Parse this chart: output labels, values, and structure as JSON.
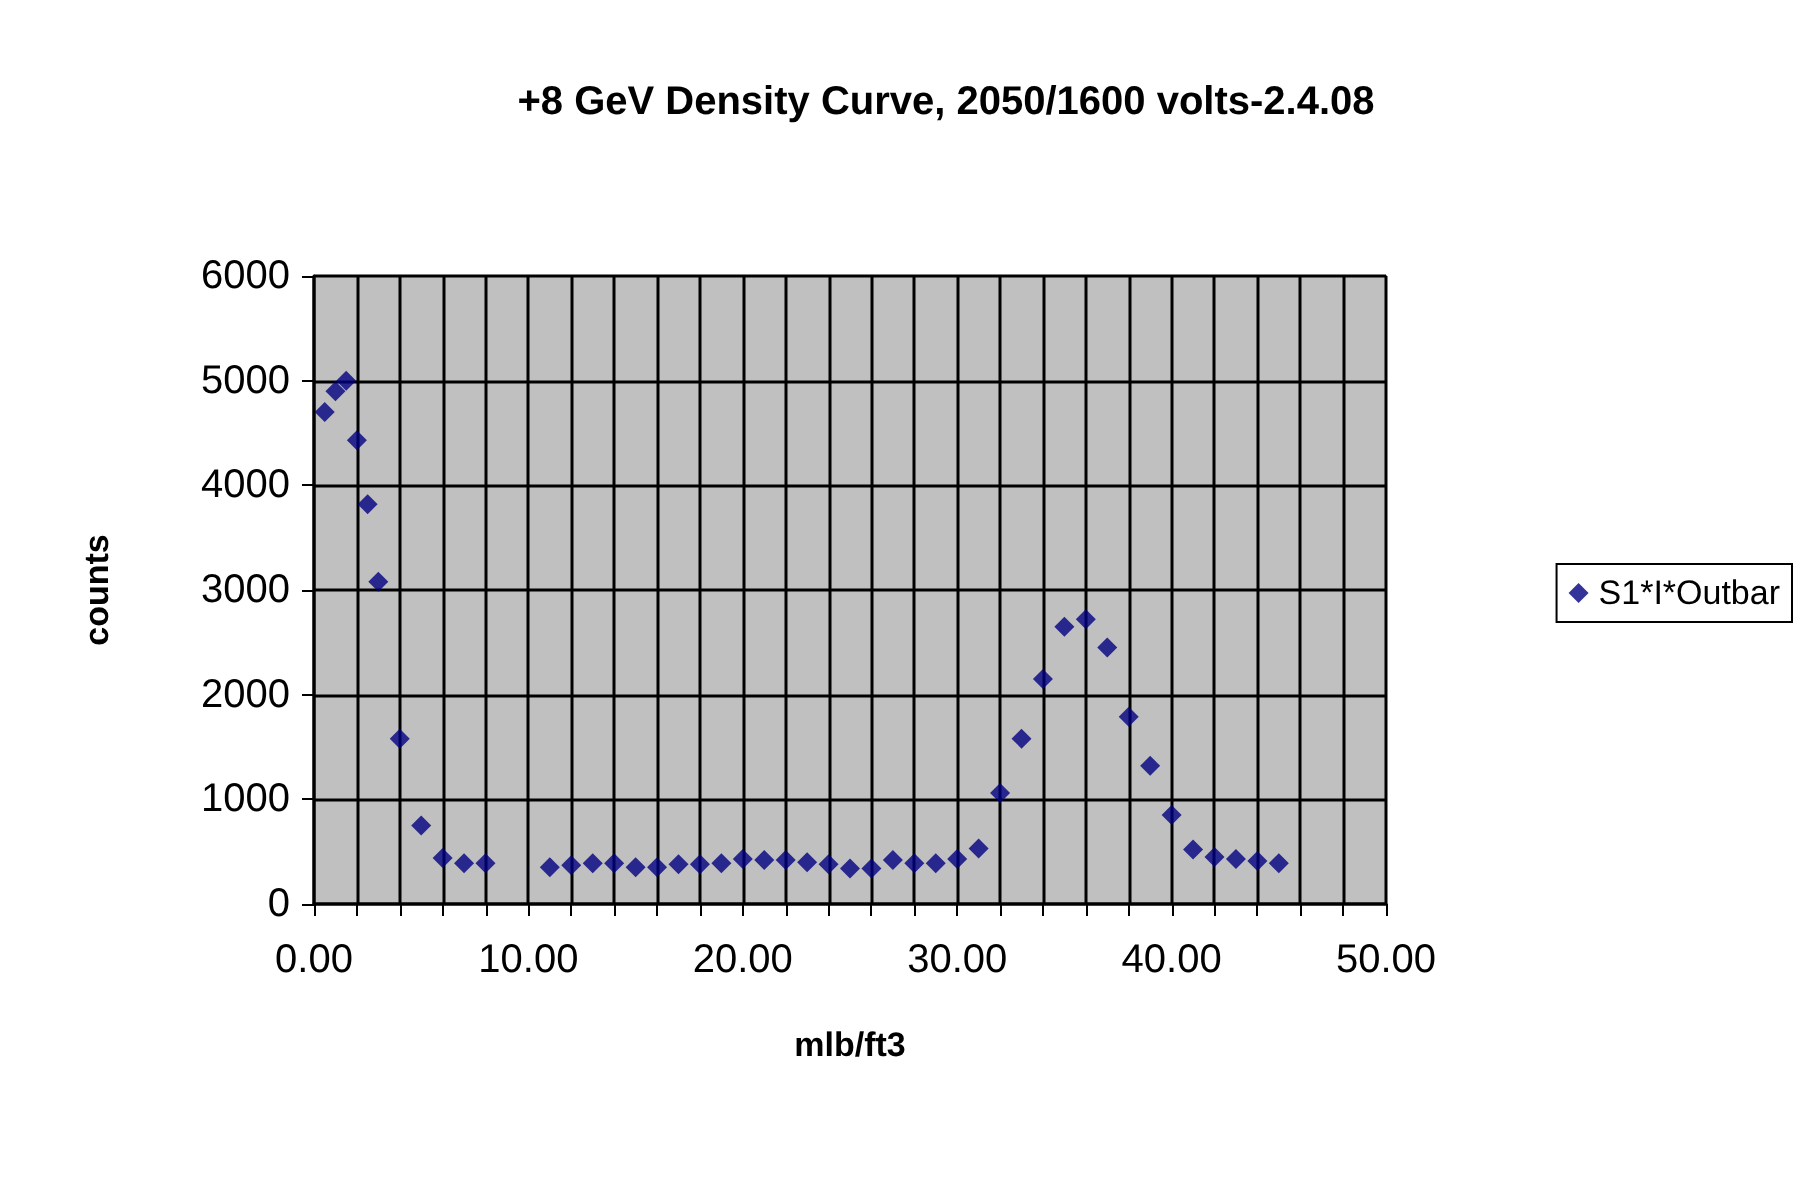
{
  "chart_data": {
    "type": "scatter",
    "title": "+8 GeV Density Curve, 2050/1600 volts-2.4.08",
    "xlabel": "mlb/ft3",
    "ylabel": "counts",
    "series": [
      {
        "name": "S1*I*Outbar",
        "color": "#000080",
        "x": [
          0.5,
          1,
          1.5,
          2,
          2.5,
          3,
          4,
          5,
          6,
          7,
          8,
          11,
          12,
          13,
          14,
          15,
          16,
          17,
          18,
          19,
          20,
          21,
          22,
          23,
          24,
          25,
          26,
          27,
          28,
          29,
          30,
          31,
          32,
          33,
          34,
          35,
          36,
          37,
          38,
          39,
          40,
          41,
          42,
          43,
          44,
          45
        ],
        "values": [
          4700,
          4900,
          5000,
          4430,
          3820,
          3080,
          1580,
          750,
          440,
          390,
          390,
          350,
          370,
          390,
          390,
          350,
          350,
          380,
          380,
          390,
          430,
          420,
          420,
          400,
          380,
          340,
          340,
          420,
          390,
          390,
          430,
          530,
          1060,
          1580,
          2150,
          2650,
          2720,
          2450,
          1790,
          1320,
          850,
          520,
          450,
          430,
          410,
          390
        ]
      }
    ],
    "xlim": [
      0,
      50
    ],
    "xticks": [
      {
        "value": 0,
        "label": "0.00"
      },
      {
        "value": 2,
        "label": null
      },
      {
        "value": 4,
        "label": null
      },
      {
        "value": 6,
        "label": null
      },
      {
        "value": 8,
        "label": null
      },
      {
        "value": 10,
        "label": "10.00"
      },
      {
        "value": 12,
        "label": null
      },
      {
        "value": 14,
        "label": null
      },
      {
        "value": 16,
        "label": null
      },
      {
        "value": 18,
        "label": null
      },
      {
        "value": 20,
        "label": "20.00"
      },
      {
        "value": 22,
        "label": null
      },
      {
        "value": 24,
        "label": null
      },
      {
        "value": 26,
        "label": null
      },
      {
        "value": 28,
        "label": null
      },
      {
        "value": 30,
        "label": "30.00"
      },
      {
        "value": 32,
        "label": null
      },
      {
        "value": 34,
        "label": null
      },
      {
        "value": 36,
        "label": null
      },
      {
        "value": 38,
        "label": null
      },
      {
        "value": 40,
        "label": "40.00"
      },
      {
        "value": 42,
        "label": null
      },
      {
        "value": 44,
        "label": null
      },
      {
        "value": 46,
        "label": null
      },
      {
        "value": 48,
        "label": null
      },
      {
        "value": 50,
        "label": "50.00"
      }
    ],
    "ylim": [
      0,
      6000
    ],
    "yticks": [
      0,
      1000,
      2000,
      3000,
      4000,
      5000,
      6000
    ],
    "grid": true,
    "legend": "right",
    "marker": "diamond"
  }
}
